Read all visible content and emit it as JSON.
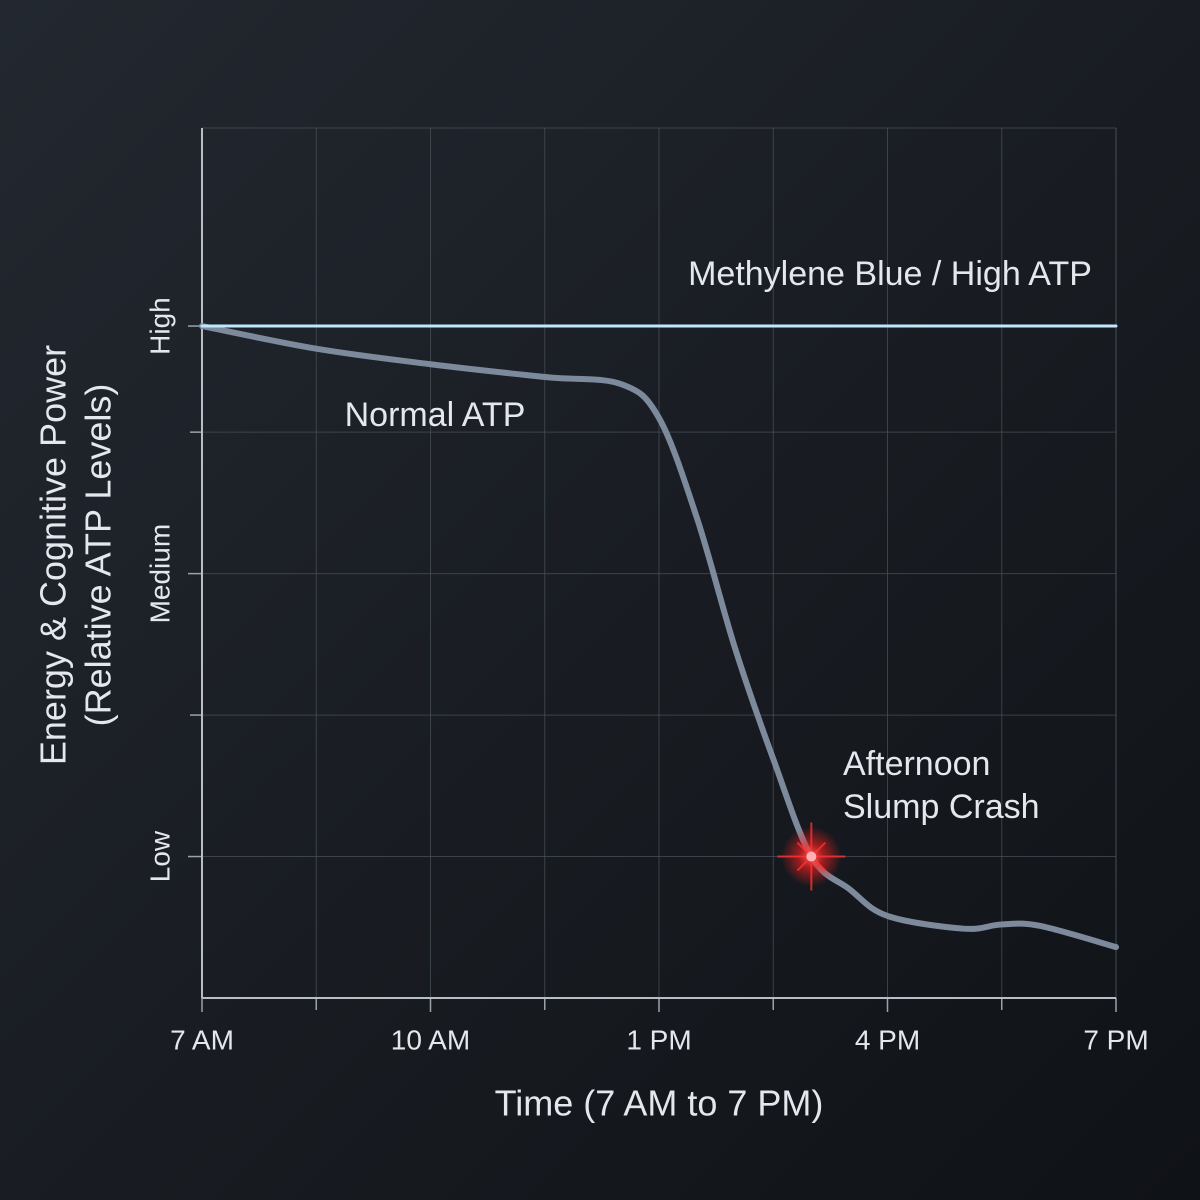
{
  "chart_data": {
    "type": "line",
    "x_title": "Time (7 AM to 7 PM)",
    "y_title": [
      "Energy & Cognitive Power",
      "(Relative ATP Levels)"
    ],
    "xlim": [
      7,
      19
    ],
    "ylim": [
      0,
      6.15
    ],
    "xticks": [
      {
        "value": 7,
        "label": "7 AM"
      },
      {
        "value": 10,
        "label": "10 AM"
      },
      {
        "value": 13,
        "label": "1 PM"
      },
      {
        "value": 16,
        "label": "4 PM"
      },
      {
        "value": 19,
        "label": "7 PM"
      }
    ],
    "xminor": [
      8.5,
      11.5,
      14.5,
      17.5
    ],
    "yticks": [
      {
        "value": 1,
        "label": "Low"
      },
      {
        "value": 3,
        "label": "Medium"
      },
      {
        "value": 4.75,
        "label": "High"
      }
    ],
    "yminor": [
      2,
      4
    ],
    "grid": true,
    "series": [
      {
        "name": "Methylene Blue / High ATP",
        "color": "#2aa8ff",
        "glow": true,
        "x": [
          7,
          19
        ],
        "values": [
          4.75,
          4.75
        ]
      },
      {
        "name": "Normal ATP",
        "color": "#7d8a9c",
        "glow": false,
        "x": [
          7,
          8.5,
          10,
          11.5,
          12.5,
          13,
          13.5,
          14,
          14.5,
          15,
          15.5,
          16,
          17,
          17.5,
          18,
          19
        ],
        "values": [
          4.75,
          4.59,
          4.48,
          4.39,
          4.34,
          4.1,
          3.39,
          2.47,
          1.69,
          1.0,
          0.77,
          0.58,
          0.49,
          0.52,
          0.51,
          0.36
        ]
      }
    ],
    "highlight": {
      "series": 1,
      "index": 9,
      "color": "#ff3030",
      "text": [
        "Afternoon",
        "Slump Crash"
      ]
    }
  }
}
